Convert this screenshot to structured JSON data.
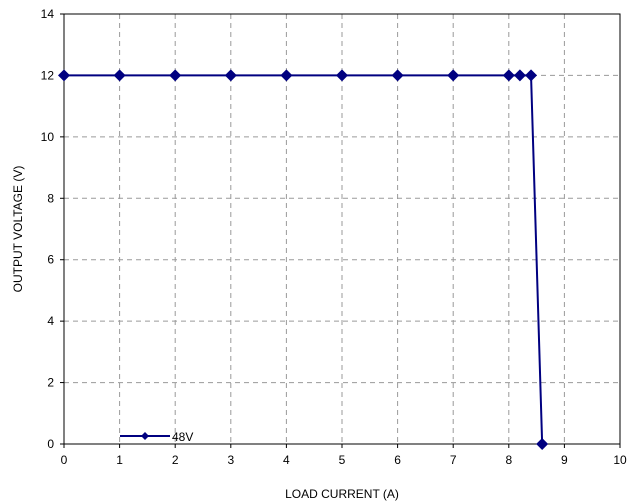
{
  "chart_data": {
    "type": "line",
    "title": "",
    "xlabel": "LOAD CURRENT (A)",
    "ylabel": "OUTPUT VOLTAGE (V)",
    "xlim": [
      0,
      10
    ],
    "ylim": [
      0,
      14
    ],
    "xticks": [
      "0",
      "1",
      "2",
      "3",
      "4",
      "5",
      "6",
      "7",
      "8",
      "9",
      "10"
    ],
    "yticks": [
      "0",
      "2",
      "4",
      "6",
      "8",
      "10",
      "12",
      "14"
    ],
    "grid": true,
    "legend_position": "bottom-left",
    "series": [
      {
        "name": "48V",
        "color": "#000080",
        "marker": "diamond",
        "x": [
          0,
          1,
          2,
          3,
          4,
          5,
          6,
          7,
          8,
          8.2,
          8.4,
          8.6
        ],
        "y": [
          12,
          12,
          12,
          12,
          12,
          12,
          12,
          12,
          12,
          12,
          12,
          0
        ]
      }
    ]
  }
}
